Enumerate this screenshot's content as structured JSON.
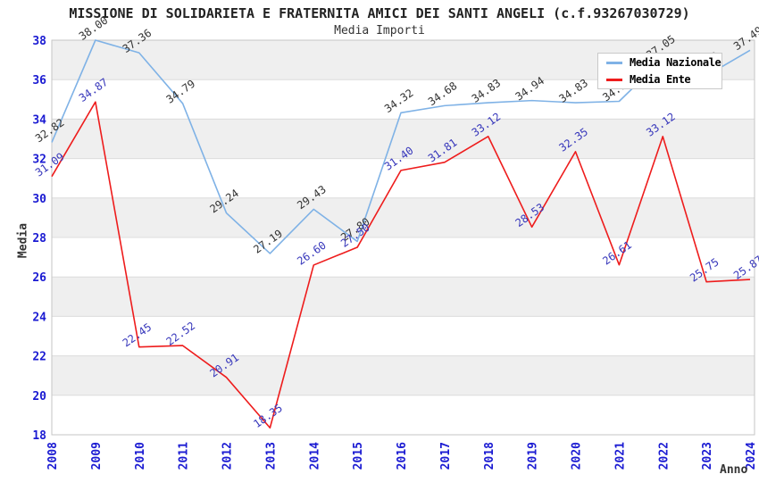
{
  "title": "MISSIONE DI SOLIDARIETA E FRATERNITA AMICI DEI SANTI ANGELI (c.f.93267030729)",
  "subtitle": "Media Importi",
  "axes": {
    "x_title": "Anno",
    "y_title": "Media",
    "y_ticks": [
      "38",
      "36",
      "34",
      "32",
      "30",
      "28",
      "26",
      "24",
      "22",
      "20",
      "18"
    ]
  },
  "legend": {
    "items": [
      {
        "label": "Media Nazionale",
        "color": "#7fb2e6"
      },
      {
        "label": "Media Ente",
        "color": "#ee1c1c"
      }
    ]
  },
  "colors": {
    "axis_tick_text": "#1a1ad2",
    "band_gray": "#efefef",
    "grid_line": "#dcdcdc",
    "plot_border": "#c6c6c6",
    "nazionale_line": "#7fb2e6",
    "ente_line": "#ee1c1c",
    "nazionale_point_label": "#333333",
    "ente_point_label": "#3737bb"
  },
  "chart_data": {
    "type": "line",
    "title": "MISSIONE DI SOLIDARIETA E FRATERNITA AMICI DEI SANTI ANGELI (c.f.93267030729)",
    "subtitle": "Media Importi",
    "xlabel": "Anno",
    "ylabel": "Media",
    "ylim": [
      18,
      38
    ],
    "ytick_step": 2,
    "grid": "horizontal-bands-alternating",
    "legend_position": "top-right-overlay",
    "categories": [
      "2008",
      "2009",
      "2010",
      "2011",
      "2012",
      "2013",
      "2014",
      "2015",
      "2016",
      "2017",
      "2018",
      "2019",
      "2020",
      "2021",
      "2022",
      "2023",
      "2024"
    ],
    "series": [
      {
        "name": "Media Nazionale",
        "color": "#7fb2e6",
        "label_color": "#333333",
        "values": [
          32.82,
          38.0,
          37.36,
          34.79,
          29.24,
          27.19,
          29.43,
          27.8,
          34.32,
          34.68,
          34.83,
          34.94,
          34.83,
          34.9,
          37.05,
          36.2,
          37.49
        ],
        "point_labels": [
          "32.82",
          "38.00",
          "37.36",
          "34.79",
          "29.24",
          "27.19",
          "29.43",
          "27.80",
          "34.32",
          "34.68",
          "34.83",
          "34.94",
          "34.83",
          "34.90",
          "37.05",
          "36.20",
          "37.49"
        ]
      },
      {
        "name": "Media Ente",
        "color": "#ee1c1c",
        "label_color": "#3737bb",
        "values": [
          31.09,
          34.87,
          22.45,
          22.52,
          20.91,
          18.35,
          26.6,
          27.5,
          31.4,
          31.81,
          33.12,
          28.53,
          32.35,
          26.61,
          33.12,
          25.75,
          25.87
        ],
        "point_labels": [
          "31.09",
          "34.87",
          "22.45",
          "22.52",
          "20.91",
          "18.35",
          "26.60",
          "27.50",
          "31.40",
          "31.81",
          "33.12",
          "28.53",
          "32.35",
          "26.61",
          "33.12",
          "25.75",
          "25.87"
        ]
      }
    ]
  }
}
